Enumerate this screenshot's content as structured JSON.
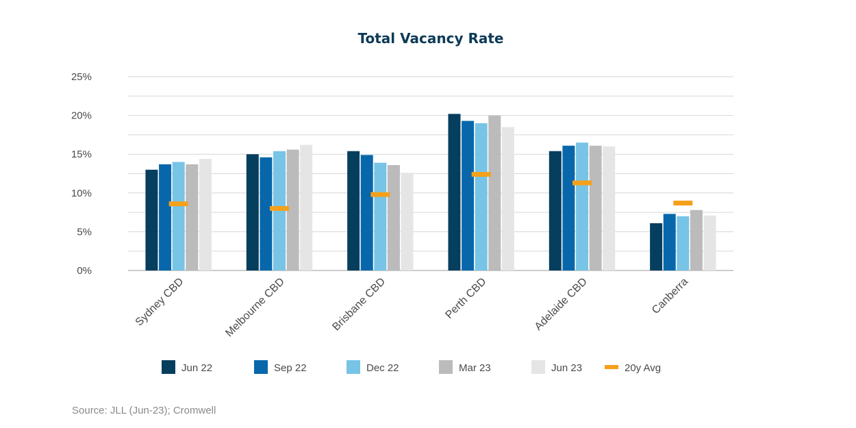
{
  "chart_data": {
    "type": "bar",
    "title": "Total Vacancy Rate",
    "source": "Source: JLL (Jun-23); Cromwell",
    "categories": [
      "Sydney CBD",
      "Melbourne CBD",
      "Brisbane CBD",
      "Perth CBD",
      "Adelaide CBD",
      "Canberra"
    ],
    "series": [
      {
        "name": "Jun 22",
        "color": "#063e5e",
        "values": [
          13.0,
          15.0,
          15.4,
          20.2,
          15.4,
          6.1
        ]
      },
      {
        "name": "Sep 22",
        "color": "#0867ab",
        "values": [
          13.7,
          14.6,
          14.9,
          19.3,
          16.1,
          7.3
        ]
      },
      {
        "name": "Dec 22",
        "color": "#77c4e6",
        "values": [
          14.0,
          15.4,
          13.9,
          19.0,
          16.5,
          7.0
        ]
      },
      {
        "name": "Mar 23",
        "color": "#bbbbbb",
        "values": [
          13.7,
          15.6,
          13.6,
          20.0,
          16.1,
          7.8
        ]
      },
      {
        "name": "Jun 23",
        "color": "#e5e5e5",
        "values": [
          14.4,
          16.2,
          12.6,
          18.5,
          16.0,
          7.1
        ]
      }
    ],
    "avg_series": {
      "name": "20y Avg",
      "color": "#f5a01a",
      "values": [
        8.6,
        8.0,
        9.8,
        12.4,
        11.3,
        8.7
      ]
    },
    "ylim": [
      0,
      25
    ],
    "yticks": [
      0,
      5,
      10,
      15,
      20,
      25
    ],
    "ytick_labels": [
      "0%",
      "5%",
      "10%",
      "15%",
      "20%",
      "25%"
    ],
    "grid": true,
    "legend_position": "bottom"
  }
}
